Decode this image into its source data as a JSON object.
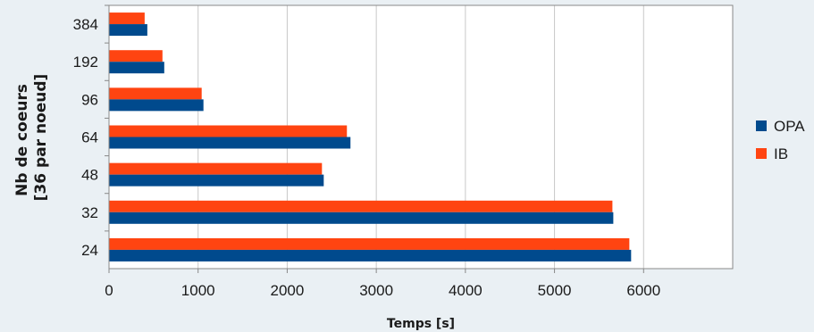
{
  "chart_data": {
    "type": "bar",
    "orientation": "horizontal",
    "categories": [
      "384",
      "192",
      "96",
      "64",
      "48",
      "32",
      "24"
    ],
    "series": [
      {
        "name": "IB",
        "color": "#ff4411",
        "values": [
          400,
          600,
          1040,
          2670,
          2390,
          5650,
          5840
        ]
      },
      {
        "name": "OPA",
        "color": "#004a8d",
        "values": [
          430,
          620,
          1060,
          2710,
          2410,
          5660,
          5860
        ]
      }
    ],
    "legend_order": [
      "OPA",
      "IB"
    ],
    "xlabel": "Temps [s]",
    "ylabel_lines": [
      "Nb de coeurs",
      "[36 par noeud]"
    ],
    "xlim": [
      0,
      7000
    ],
    "xticks": [
      0,
      1000,
      2000,
      3000,
      4000,
      5000,
      6000
    ],
    "grid": "vertical",
    "legend_position": "right",
    "plot_background": "#ffffff",
    "page_background": "#eaf0f4"
  }
}
